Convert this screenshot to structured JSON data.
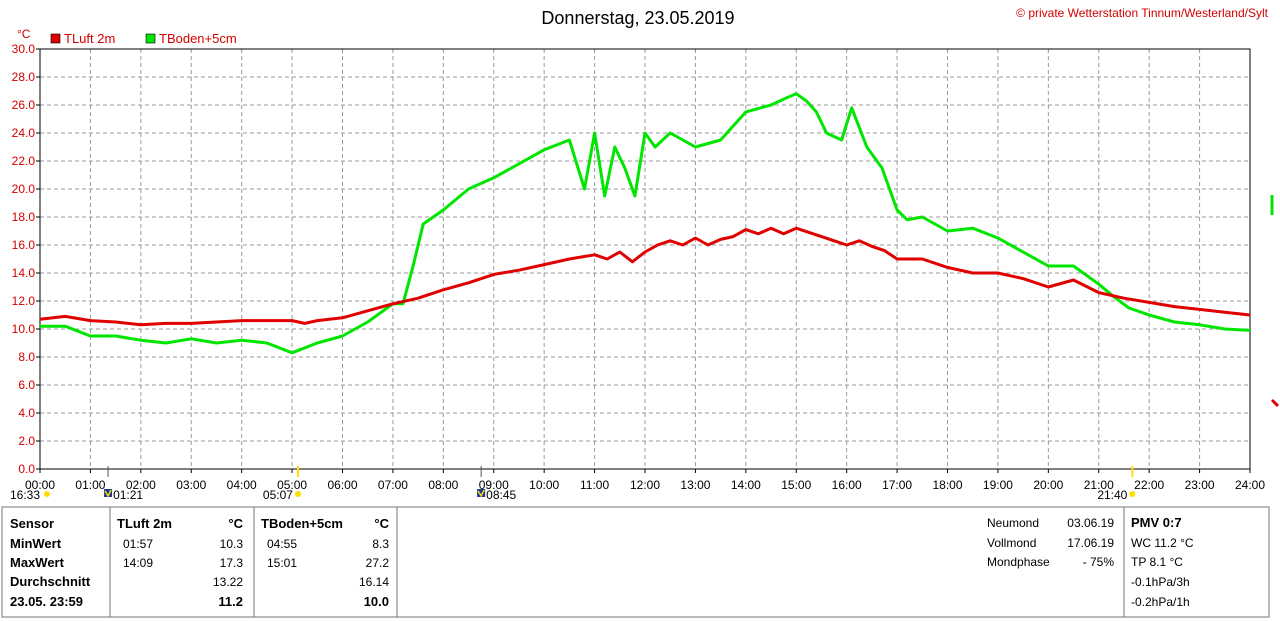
{
  "colors": {
    "tluft": "#e00000",
    "tboden": "#00e600",
    "axis_text": "#d40000",
    "grid": "#9a9a9a"
  },
  "chart_data": {
    "type": "line",
    "title": "Donnerstag, 23.05.2019",
    "copyright": "private Wetterstation Tinnum/Westerland/Sylt",
    "ylabel": "°C",
    "ylim": [
      0,
      30
    ],
    "yticks": [
      "0.0",
      "2.0",
      "4.0",
      "6.0",
      "8.0",
      "10.0",
      "12.0",
      "14.0",
      "16.0",
      "18.0",
      "20.0",
      "22.0",
      "24.0",
      "26.0",
      "28.0",
      "30.0"
    ],
    "xlim": [
      0,
      24
    ],
    "xticks": [
      "00:00",
      "01:00",
      "02:00",
      "03:00",
      "04:00",
      "05:00",
      "06:00",
      "07:00",
      "08:00",
      "09:00",
      "10:00",
      "11:00",
      "12:00",
      "13:00",
      "14:00",
      "15:00",
      "16:00",
      "17:00",
      "18:00",
      "19:00",
      "20:00",
      "21:00",
      "22:00",
      "23:00",
      "24:00"
    ],
    "grid": true,
    "legend_position": "top-left",
    "series": [
      {
        "name": "TLuft 2m",
        "color": "#e00000",
        "x": [
          0,
          0.5,
          1,
          1.5,
          2,
          2.5,
          3,
          3.5,
          4,
          4.5,
          5,
          5.25,
          5.5,
          6,
          6.5,
          7,
          7.5,
          8,
          8.5,
          9,
          9.5,
          10,
          10.5,
          11,
          11.25,
          11.5,
          11.75,
          12,
          12.25,
          12.5,
          12.75,
          13,
          13.25,
          13.5,
          13.75,
          14,
          14.25,
          14.5,
          14.75,
          15,
          15.25,
          15.5,
          15.75,
          16,
          16.25,
          16.5,
          16.75,
          17,
          17.5,
          18,
          18.5,
          19,
          19.5,
          20,
          20.5,
          21,
          21.5,
          22,
          22.5,
          23,
          23.5,
          24
        ],
        "values": [
          10.7,
          10.9,
          10.6,
          10.5,
          10.3,
          10.4,
          10.4,
          10.5,
          10.6,
          10.6,
          10.6,
          10.4,
          10.6,
          10.8,
          11.3,
          11.8,
          12.2,
          12.8,
          13.3,
          13.9,
          14.2,
          14.6,
          15.0,
          15.3,
          15.0,
          15.5,
          14.8,
          15.5,
          16.0,
          16.3,
          16.0,
          16.5,
          16.0,
          16.4,
          16.6,
          17.1,
          16.8,
          17.2,
          16.8,
          17.2,
          16.9,
          16.6,
          16.3,
          16.0,
          16.3,
          15.9,
          15.6,
          15.0,
          15.0,
          14.4,
          14.0,
          14.0,
          13.6,
          13.0,
          13.5,
          12.6,
          12.2,
          11.9,
          11.6,
          11.4,
          11.2,
          11.0
        ]
      },
      {
        "name": "TBoden+5cm",
        "color": "#00e600",
        "x": [
          0,
          0.5,
          1,
          1.5,
          2,
          2.5,
          3,
          3.5,
          4,
          4.5,
          5,
          5.5,
          6,
          6.5,
          7,
          7.2,
          7.4,
          7.6,
          8,
          8.5,
          9,
          9.5,
          10,
          10.5,
          10.8,
          11,
          11.2,
          11.4,
          11.6,
          11.8,
          12,
          12.2,
          12.5,
          13,
          13.5,
          14,
          14.5,
          14.8,
          15,
          15.2,
          15.4,
          15.6,
          15.9,
          16.1,
          16.4,
          16.7,
          17,
          17.2,
          17.5,
          18,
          18.5,
          19,
          19.5,
          20,
          20.5,
          21,
          21.3,
          21.6,
          22,
          22.5,
          23,
          23.5,
          24
        ],
        "values": [
          10.2,
          10.2,
          9.5,
          9.5,
          9.2,
          9.0,
          9.3,
          9.0,
          9.2,
          9.0,
          8.3,
          9.0,
          9.5,
          10.5,
          11.8,
          11.8,
          14.5,
          17.5,
          18.5,
          20.0,
          20.8,
          21.8,
          22.8,
          23.5,
          20.0,
          24.0,
          19.5,
          23.0,
          21.5,
          19.5,
          24.0,
          23.0,
          24.0,
          23.0,
          23.5,
          25.5,
          26.0,
          26.5,
          26.8,
          26.3,
          25.5,
          24.0,
          23.5,
          25.8,
          23.0,
          21.5,
          18.5,
          17.8,
          18.0,
          17.0,
          17.2,
          16.5,
          15.5,
          14.5,
          14.5,
          13.2,
          12.3,
          11.5,
          11.0,
          10.5,
          10.3,
          10.0,
          9.9
        ]
      }
    ]
  },
  "markers": [
    {
      "time": "16:33",
      "icon": "sun-icon"
    },
    {
      "time": "01:21",
      "icon": "moon-icon"
    },
    {
      "time": "05:07",
      "icon": "sun-icon"
    },
    {
      "time": "08:45",
      "icon": "moon-icon"
    },
    {
      "time": "21:40",
      "icon": "sun-icon"
    }
  ],
  "table": {
    "headers": {
      "sensor": "Sensor",
      "tluft": "TLuft 2m",
      "tluft_unit": "°C",
      "tboden": "TBoden+5cm",
      "tboden_unit": "°C"
    },
    "rows": [
      {
        "label": "MinWert",
        "tluft_time": "01:57",
        "tluft_val": "10.3",
        "tboden_time": "04:55",
        "tboden_val": "8.3"
      },
      {
        "label": "MaxWert",
        "tluft_time": "14:09",
        "tluft_val": "17.3",
        "tboden_time": "15:01",
        "tboden_val": "27.2"
      },
      {
        "label": "Durchschnitt",
        "tluft_time": "",
        "tluft_val": "13.22",
        "tboden_time": "",
        "tboden_val": "16.14"
      },
      {
        "label": "23.05. 23:59",
        "tluft_time": "",
        "tluft_val": "11.2",
        "tboden_time": "",
        "tboden_val": "10.0"
      }
    ]
  },
  "moon": [
    {
      "label": "Neumond",
      "value": "03.06.19"
    },
    {
      "label": "Vollmond",
      "value": "17.06.19"
    },
    {
      "label": "Mondphase",
      "value": "- 75%"
    }
  ],
  "extra": {
    "title": "PMV 0:7",
    "lines": [
      "WC 11.2 °C",
      "TP 8.1 °C",
      "-0.1hPa/3h",
      "-0.2hPa/1h"
    ]
  }
}
